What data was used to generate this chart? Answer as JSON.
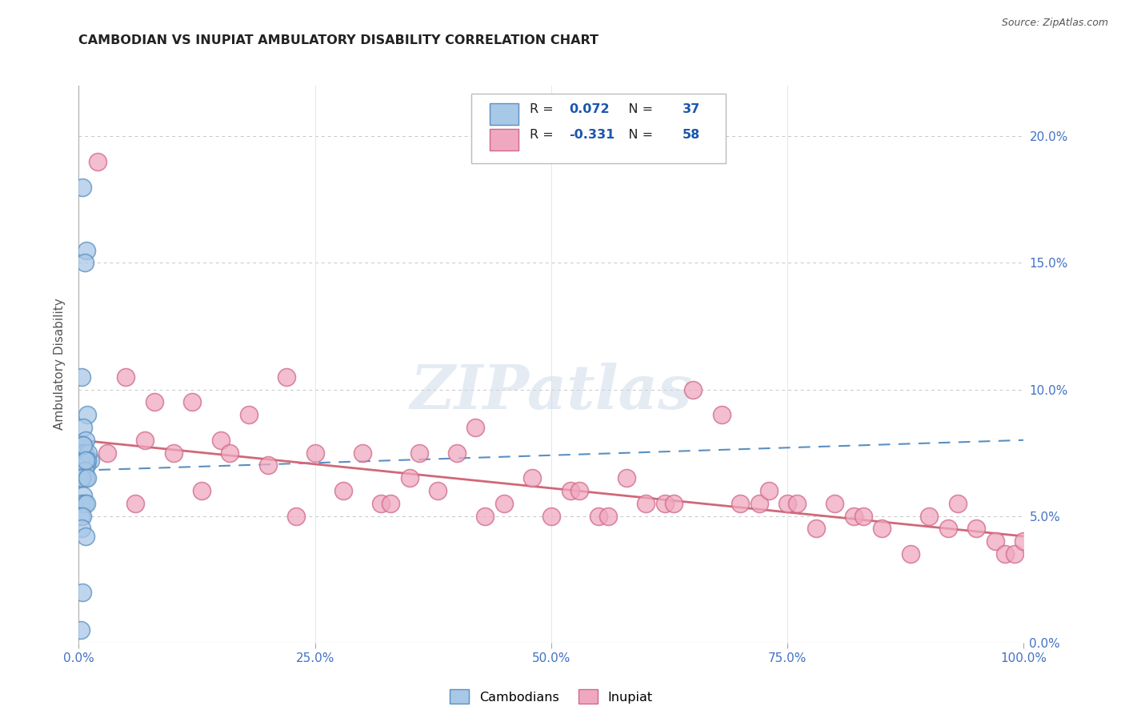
{
  "title": "CAMBODIAN VS INUPIAT AMBULATORY DISABILITY CORRELATION CHART",
  "source": "Source: ZipAtlas.com",
  "ylabel": "Ambulatory Disability",
  "xlim": [
    0.0,
    100.0
  ],
  "ylim": [
    0.0,
    22.0
  ],
  "ytick_vals": [
    0.0,
    5.0,
    10.0,
    15.0,
    20.0
  ],
  "xtick_vals": [
    0.0,
    25.0,
    50.0,
    75.0,
    100.0
  ],
  "cambodian_R": 0.072,
  "cambodian_N": 37,
  "inupiat_R": -0.331,
  "inupiat_N": 58,
  "cam_face": "#a8c8e8",
  "cam_edge": "#5a8fc0",
  "inp_face": "#f0a8c0",
  "inp_edge": "#d06888",
  "cam_line": "#5a8fc0",
  "inp_line": "#d06878",
  "tick_color": "#4472c4",
  "title_color": "#222222",
  "legend_text_color": "#222222",
  "legend_val_color": "#1a56b0",
  "watermark": "ZIPatlas",
  "cambodian_x": [
    0.4,
    0.8,
    0.6,
    0.3,
    0.9,
    0.5,
    0.7,
    0.4,
    0.2,
    1.2,
    0.6,
    0.4,
    0.8,
    0.5,
    0.3,
    0.5,
    0.3,
    1.0,
    0.9,
    0.4,
    0.6,
    0.2,
    0.7,
    0.5,
    0.3,
    0.9,
    0.7,
    0.5,
    0.3,
    0.6,
    0.8,
    0.2,
    0.4,
    0.3,
    0.7,
    0.4,
    0.2
  ],
  "cambodian_y": [
    18.0,
    15.5,
    15.0,
    10.5,
    9.0,
    8.5,
    8.0,
    7.8,
    7.5,
    7.2,
    7.5,
    7.0,
    7.0,
    7.0,
    6.8,
    7.2,
    6.5,
    7.5,
    7.2,
    6.5,
    6.8,
    6.5,
    6.5,
    7.8,
    6.5,
    6.5,
    7.2,
    5.8,
    5.5,
    5.5,
    5.5,
    5.0,
    5.0,
    4.5,
    4.2,
    2.0,
    0.5
  ],
  "inupiat_x": [
    2.0,
    5.0,
    8.0,
    10.0,
    12.0,
    15.0,
    18.0,
    20.0,
    22.0,
    25.0,
    28.0,
    30.0,
    32.0,
    35.0,
    38.0,
    40.0,
    42.0,
    45.0,
    48.0,
    50.0,
    52.0,
    55.0,
    58.0,
    60.0,
    62.0,
    65.0,
    68.0,
    70.0,
    72.0,
    75.0,
    78.0,
    80.0,
    82.0,
    85.0,
    88.0,
    90.0,
    92.0,
    95.0,
    97.0,
    98.0,
    99.0,
    100.0,
    3.0,
    7.0,
    13.0,
    23.0,
    33.0,
    43.0,
    53.0,
    63.0,
    73.0,
    83.0,
    93.0,
    6.0,
    16.0,
    36.0,
    56.0,
    76.0
  ],
  "inupiat_y": [
    19.0,
    10.5,
    9.5,
    7.5,
    9.5,
    8.0,
    9.0,
    7.0,
    10.5,
    7.5,
    6.0,
    7.5,
    5.5,
    6.5,
    6.0,
    7.5,
    8.5,
    5.5,
    6.5,
    5.0,
    6.0,
    5.0,
    6.5,
    5.5,
    5.5,
    10.0,
    9.0,
    5.5,
    5.5,
    5.5,
    4.5,
    5.5,
    5.0,
    4.5,
    3.5,
    5.0,
    4.5,
    4.5,
    4.0,
    3.5,
    3.5,
    4.0,
    7.5,
    8.0,
    6.0,
    5.0,
    5.5,
    5.0,
    6.0,
    5.5,
    6.0,
    5.0,
    5.5,
    5.5,
    7.5,
    7.5,
    5.0,
    5.5
  ],
  "cam_trend_x0": 0,
  "cam_trend_x1": 100,
  "cam_trend_y0": 6.8,
  "cam_trend_y1": 8.0,
  "inp_trend_x0": 0,
  "inp_trend_x1": 100,
  "inp_trend_y0": 8.0,
  "inp_trend_y1": 4.2
}
